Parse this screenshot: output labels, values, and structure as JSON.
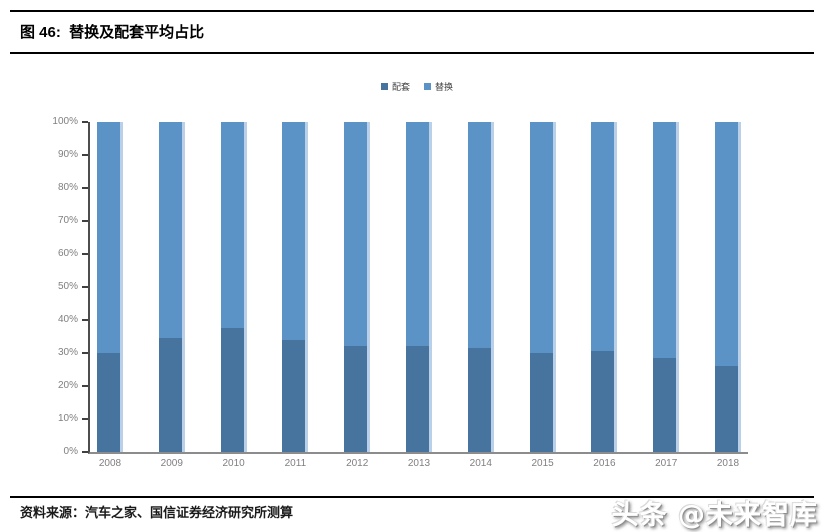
{
  "header": {
    "title": "图 46:  替换及配套平均占比"
  },
  "chart_data": {
    "type": "bar",
    "stacked": true,
    "categories": [
      "2008",
      "2009",
      "2010",
      "2011",
      "2012",
      "2013",
      "2014",
      "2015",
      "2016",
      "2017",
      "2018"
    ],
    "series": [
      {
        "name": "配套",
        "color": "#46749F",
        "values": [
          30,
          34.5,
          37.5,
          34,
          32,
          32,
          31.5,
          30,
          30.5,
          28.5,
          26
        ]
      },
      {
        "name": "替换",
        "color": "#5B93C6",
        "values": [
          70,
          65.5,
          62.5,
          66,
          68,
          68,
          68.5,
          70,
          69.5,
          71.5,
          74
        ]
      }
    ],
    "title": "替换及配套平均占比",
    "xlabel": "",
    "ylabel": "",
    "ylim": [
      0,
      100
    ],
    "y_ticks": [
      "0%",
      "10%",
      "20%",
      "30%",
      "40%",
      "50%",
      "60%",
      "70%",
      "80%",
      "90%",
      "100%"
    ],
    "grid": false,
    "legend_position": "top",
    "bar_highlight_color": "#B9D0E8",
    "axis_color": "#4d4d4d",
    "tick_label_color": "#7f7f7f"
  },
  "footer": {
    "source": "资料来源：汽车之家、国信证券经济研究所测算",
    "watermark": "头条 @未来智库"
  }
}
